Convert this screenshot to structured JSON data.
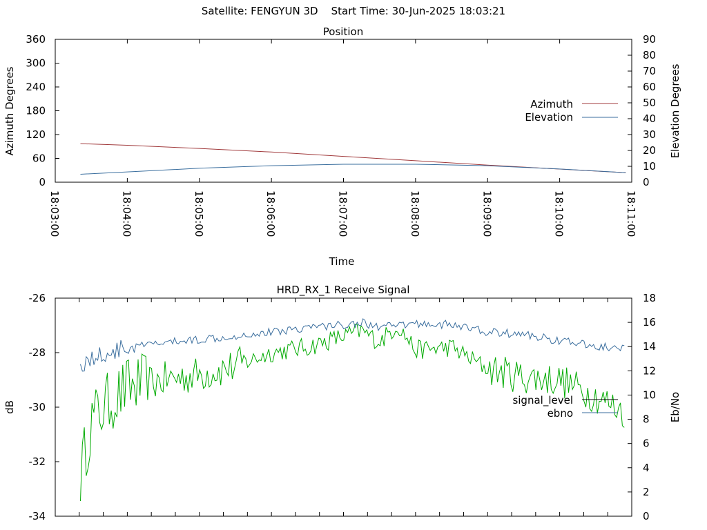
{
  "header": {
    "satellite": "Satellite: FENGYUN 3D",
    "start_time": "Start Time: 30-Jun-2025 18:03:21"
  },
  "colors": {
    "azimuth": "#a0393b",
    "elevation": "#3a6e9e",
    "signal_level": "#00aa00",
    "ebno": "#3a6e9e",
    "legend_signal_level": "#000000"
  },
  "chart_data": [
    {
      "type": "line",
      "title": "Position",
      "xlabel": "Time",
      "ylabel": "Azimuth Degrees",
      "y2label": "Elevation Degrees",
      "x_ticks": [
        "18:03:00",
        "18:04:00",
        "18:05:00",
        "18:06:00",
        "18:07:00",
        "18:08:00",
        "18:09:00",
        "18:10:00",
        "18:11:00"
      ],
      "xlim": [
        "18:03:00",
        "18:11:00"
      ],
      "ylim": [
        0,
        360
      ],
      "y_ticks": [
        0,
        60,
        120,
        180,
        240,
        300,
        360
      ],
      "y2lim": [
        0,
        90
      ],
      "y2_ticks": [
        0,
        10,
        20,
        30,
        40,
        50,
        60,
        70,
        80,
        90
      ],
      "legend_position": "right",
      "series": [
        {
          "name": "Azimuth",
          "axis": "y",
          "x": [
            "18:03:21",
            "18:04:00",
            "18:05:00",
            "18:06:00",
            "18:07:00",
            "18:08:00",
            "18:09:00",
            "18:10:00",
            "18:10:55"
          ],
          "values": [
            97,
            93,
            85,
            76,
            65,
            54,
            43,
            33,
            24
          ]
        },
        {
          "name": "Elevation",
          "axis": "y2",
          "x": [
            "18:03:21",
            "18:04:00",
            "18:05:00",
            "18:06:00",
            "18:07:00",
            "18:08:00",
            "18:09:00",
            "18:10:00",
            "18:10:55"
          ],
          "values": [
            5,
            6.5,
            8.8,
            10.4,
            11.3,
            11.3,
            10.4,
            8.3,
            6
          ]
        }
      ]
    },
    {
      "type": "line",
      "title": "HRD_RX_1 Receive Signal",
      "ylabel": "dB",
      "y2label": "Eb/No",
      "ylim": [
        -34,
        -26
      ],
      "y_ticks": [
        -34,
        -32,
        -30,
        -28,
        -26
      ],
      "y2lim": [
        0,
        18
      ],
      "y2_ticks": [
        0,
        2,
        4,
        6,
        8,
        10,
        12,
        14,
        16,
        18
      ],
      "legend_position": "right",
      "series": [
        {
          "name": "signal_level",
          "axis": "y",
          "x": [
            "18:03:21",
            "18:03:30",
            "18:03:45",
            "18:04:00",
            "18:04:30",
            "18:05:00",
            "18:05:30",
            "18:06:00",
            "18:06:30",
            "18:07:00",
            "18:07:15",
            "18:07:30",
            "18:07:45",
            "18:08:00",
            "18:08:30",
            "18:09:00",
            "18:09:30",
            "18:10:00",
            "18:10:30",
            "18:10:55"
          ],
          "values": [
            -32.5,
            -30.5,
            -29.8,
            -29.3,
            -29.0,
            -28.8,
            -28.5,
            -28.0,
            -27.8,
            -27.4,
            -27.2,
            -27.6,
            -27.0,
            -27.9,
            -27.8,
            -28.6,
            -28.9,
            -29.0,
            -29.6,
            -30.2
          ]
        },
        {
          "name": "ebno",
          "axis": "y2",
          "x": [
            "18:03:21",
            "18:03:30",
            "18:03:45",
            "18:04:00",
            "18:04:30",
            "18:05:00",
            "18:05:30",
            "18:06:00",
            "18:06:30",
            "18:07:00",
            "18:07:15",
            "18:07:30",
            "18:07:45",
            "18:08:00",
            "18:08:30",
            "18:09:00",
            "18:09:30",
            "18:10:00",
            "18:10:30",
            "18:10:55"
          ],
          "values": [
            12.5,
            13.0,
            13.5,
            13.9,
            14.3,
            14.6,
            14.9,
            15.2,
            15.6,
            15.8,
            16.0,
            15.6,
            15.7,
            15.9,
            15.8,
            15.2,
            15.0,
            14.5,
            14.0,
            13.8
          ]
        }
      ]
    }
  ]
}
